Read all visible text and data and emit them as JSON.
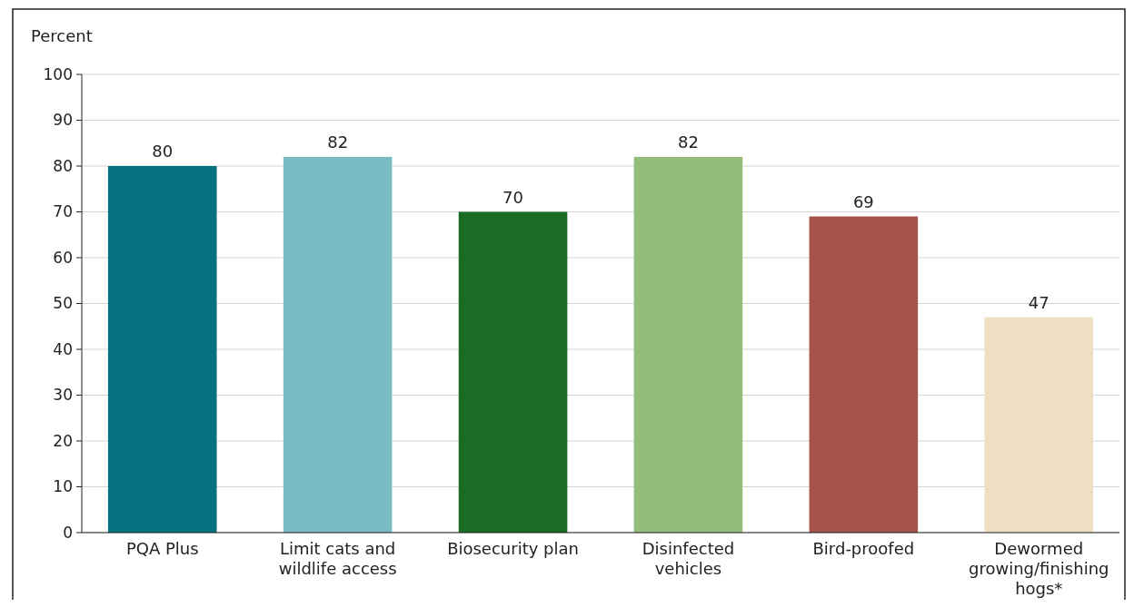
{
  "chart_data": {
    "type": "bar",
    "ylabel": "Percent",
    "categories": [
      "PQA Plus",
      "Limit cats and wildlife access",
      "Biosecurity plan",
      "Disinfected vehicles",
      "Bird-proofed",
      "Dewormed growing/finishing hogs*"
    ],
    "values": [
      80,
      82,
      70,
      82,
      69,
      47
    ],
    "colors": [
      "#04727f",
      "#7bbcc4",
      "#1a6b24",
      "#94bd7b",
      "#a4544a",
      "#efdfc2"
    ],
    "ylim": [
      0,
      100
    ],
    "yticks": [
      0,
      10,
      20,
      30,
      40,
      50,
      60,
      70,
      80,
      90,
      100
    ],
    "grid": "y",
    "data_labels": true
  }
}
